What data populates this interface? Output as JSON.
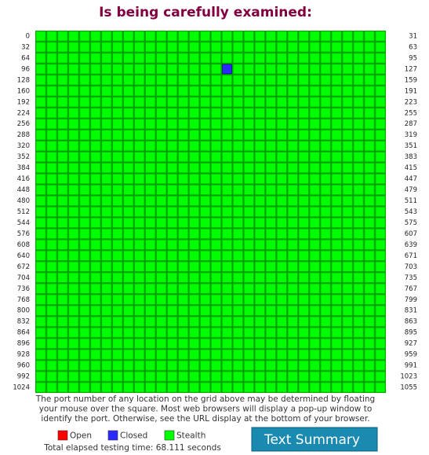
{
  "title": "Is being carefully examined:",
  "grid": {
    "row_start_labels": [
      0,
      32,
      64,
      96,
      128,
      160,
      192,
      224,
      256,
      288,
      320,
      352,
      384,
      416,
      448,
      480,
      512,
      544,
      576,
      608,
      640,
      672,
      704,
      736,
      768,
      800,
      832,
      864,
      896,
      928,
      960,
      992,
      1024
    ],
    "row_end_labels": [
      31,
      63,
      95,
      127,
      159,
      191,
      223,
      255,
      287,
      319,
      351,
      383,
      415,
      447,
      479,
      511,
      543,
      575,
      607,
      639,
      671,
      703,
      735,
      767,
      799,
      831,
      863,
      895,
      927,
      959,
      991,
      1023,
      1055
    ],
    "closed_ports": [
      113
    ]
  },
  "footer": {
    "note": [
      "The port number of any location on the grid above may be determined by floating",
      "your mouse over the square. Most web browsers will display a pop-up window to",
      "identify the port. Otherwise, see the URL display at the bottom of your browser."
    ],
    "legend": [
      {
        "label": "Open",
        "color": "#ff0000"
      },
      {
        "label": "Closed",
        "color": "#2a2aff"
      },
      {
        "label": "Stealth",
        "color": "#00ff00"
      }
    ],
    "elapsed": "Total elapsed testing time: 68.111 seconds"
  },
  "button": "Text Summary"
}
